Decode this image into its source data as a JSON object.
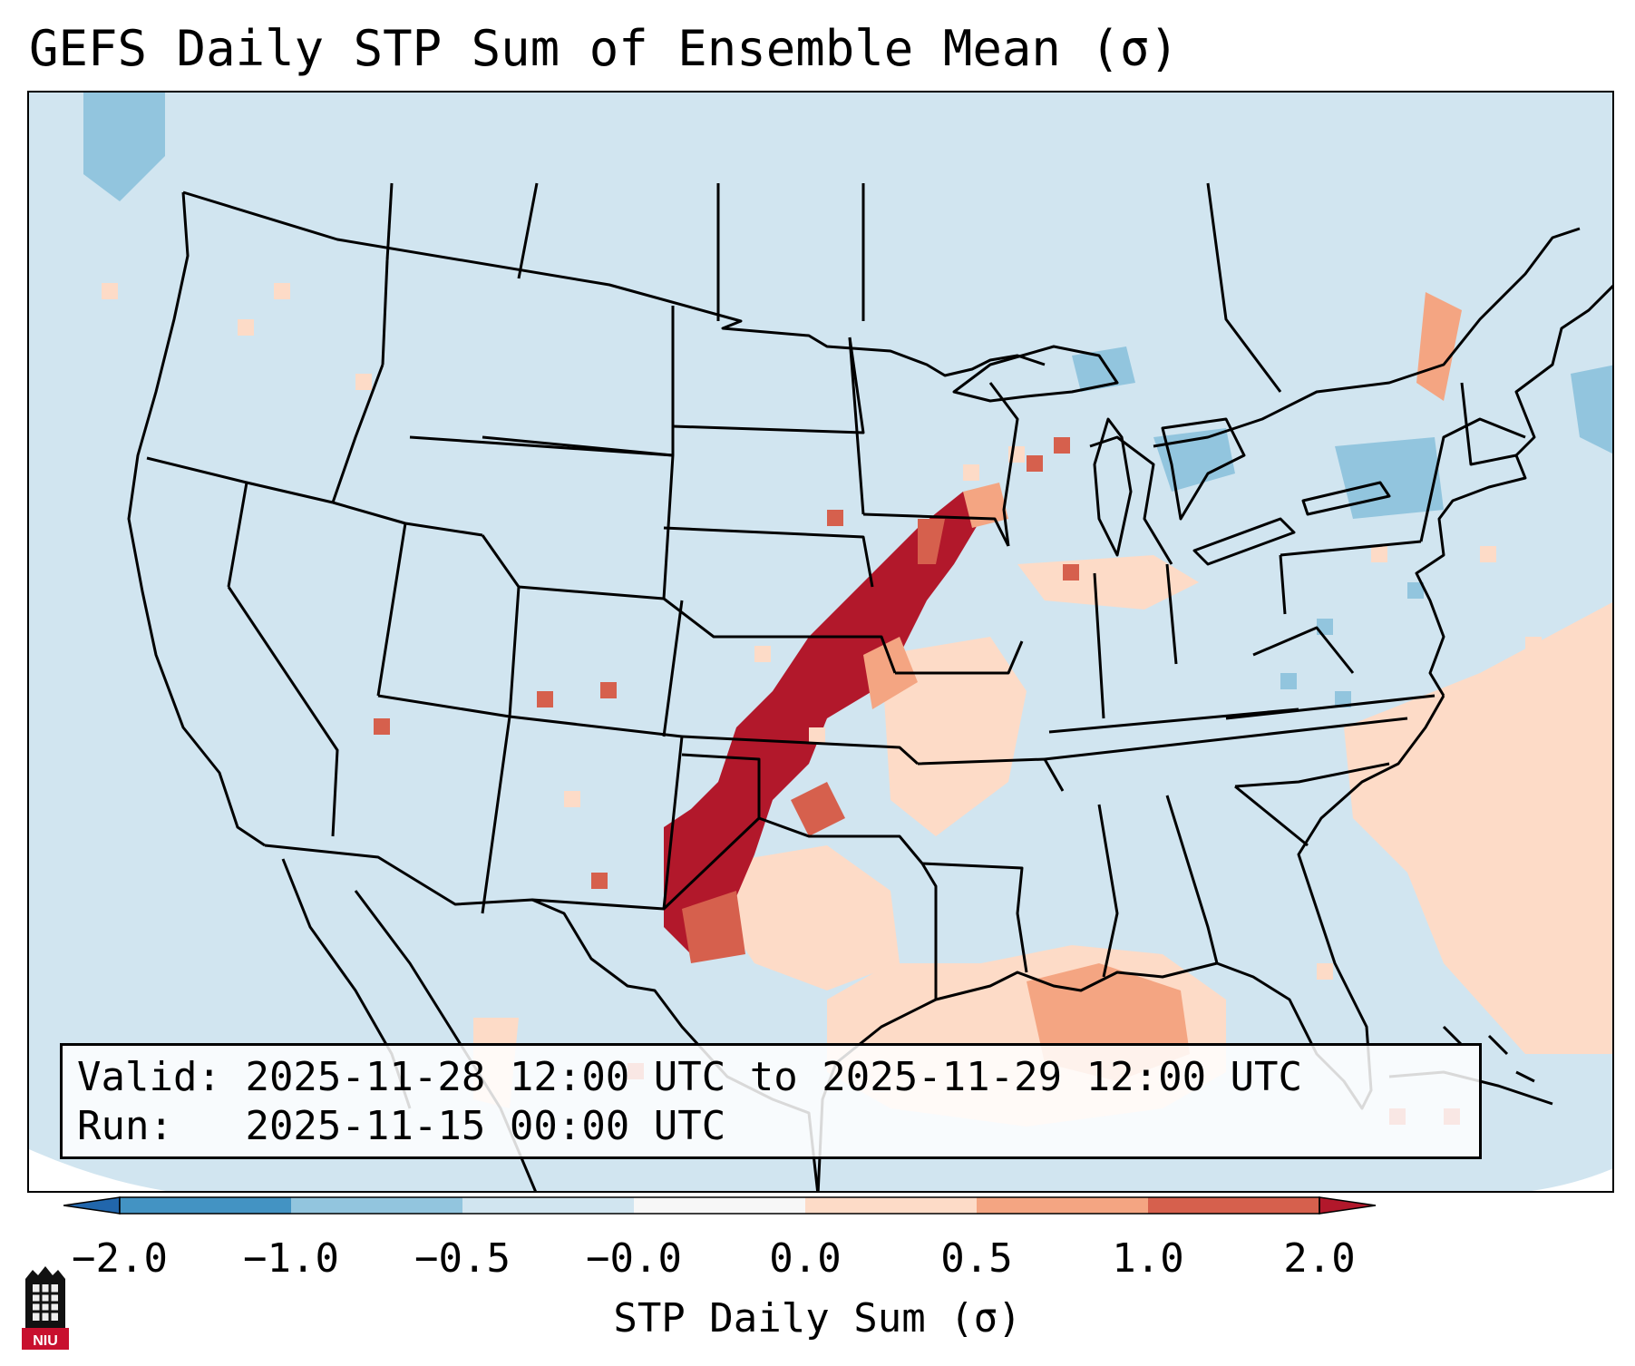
{
  "title": "GEFS Daily STP Sum of Ensemble Mean (σ)",
  "info": {
    "valid_label": "Valid:",
    "valid_value": "2025-11-28 12:00 UTC to 2025-11-29 12:00 UTC",
    "run_label": "Run:",
    "run_value": "2025-11-15 00:00 UTC"
  },
  "colorbar": {
    "label": "STP Daily Sum (σ)",
    "ticks": [
      "−2.0",
      "−1.0",
      "−0.5",
      "−0.0",
      "0.0",
      "0.5",
      "1.0",
      "2.0"
    ],
    "colors": [
      "#4393c3",
      "#92c5de",
      "#d1e5f0",
      "#f7f7f7",
      "#fddbc7",
      "#f4a582",
      "#d6604d"
    ],
    "extend_min_color": "#2166ac",
    "extend_max_color": "#b2182b"
  },
  "map": {
    "background_color": "#d1e5f0",
    "max_anomaly_color": "#b2182b",
    "high_anomaly_color": "#d6604d",
    "moderate_anomaly_color": "#f4a582",
    "weak_anomaly_color": "#fddbc7",
    "negative_anomaly_color": "#92c5de",
    "boundary_color": "#000000"
  },
  "logo": {
    "text": "NIU",
    "icon": "university-building-icon"
  }
}
